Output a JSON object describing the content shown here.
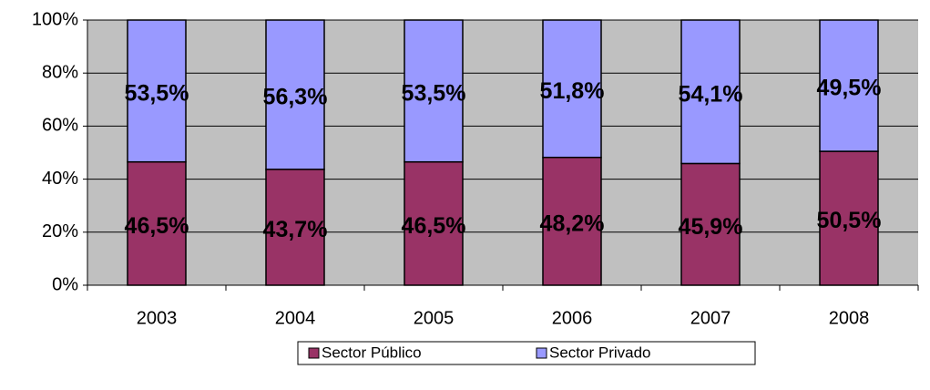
{
  "chart_data": {
    "type": "stacked_bar",
    "categories": [
      "2003",
      "2004",
      "2005",
      "2006",
      "2007",
      "2008"
    ],
    "series": [
      {
        "name": "Sector Público",
        "color": "#993366",
        "values": [
          46.5,
          43.7,
          46.5,
          48.2,
          45.9,
          50.5
        ],
        "value_labels": [
          "46,5%",
          "43,7%",
          "46,5%",
          "48,2%",
          "45,9%",
          "50,5%"
        ]
      },
      {
        "name": "Sector Privado",
        "color": "#9999ff",
        "values": [
          53.5,
          56.3,
          53.5,
          51.8,
          54.1,
          49.5
        ],
        "value_labels": [
          "53,5%",
          "56,3%",
          "53,5%",
          "51,8%",
          "54,1%",
          "49,5%"
        ]
      }
    ],
    "ylim": [
      0,
      100
    ],
    "yticks": [
      {
        "value": 0,
        "label": "0%"
      },
      {
        "value": 20,
        "label": "20%"
      },
      {
        "value": 40,
        "label": "40%"
      },
      {
        "value": 60,
        "label": "60%"
      },
      {
        "value": 80,
        "label": "80%"
      },
      {
        "value": 100,
        "label": "100%"
      }
    ],
    "grid": true,
    "plot_background": "#c0c0c0",
    "legend": "bottom"
  }
}
